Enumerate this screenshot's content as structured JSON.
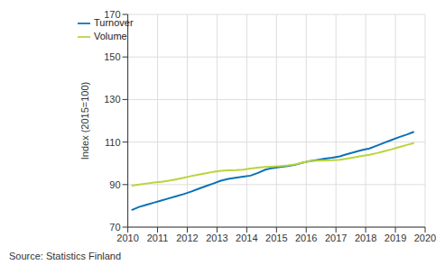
{
  "chart_data": {
    "type": "line",
    "y_label": "Index (2015=100)",
    "source": "Source: Statistics Finland",
    "x": [
      2010.125,
      2010.375,
      2010.625,
      2010.875,
      2011.125,
      2011.375,
      2011.625,
      2011.875,
      2012.125,
      2012.375,
      2012.625,
      2012.875,
      2013.125,
      2013.375,
      2013.625,
      2013.875,
      2014.125,
      2014.375,
      2014.625,
      2014.875,
      2015.125,
      2015.375,
      2015.625,
      2015.875,
      2016.125,
      2016.375,
      2016.625,
      2016.875,
      2017.125,
      2017.375,
      2017.625,
      2017.875,
      2018.125,
      2018.375,
      2018.625,
      2018.875,
      2019.125,
      2019.375,
      2019.625
    ],
    "series": [
      {
        "name": "Turnover",
        "color": "#0a72b5",
        "values": [
          78,
          79.5,
          80.5,
          81.5,
          82.5,
          83.5,
          84.5,
          85.5,
          86.7,
          88,
          89.3,
          90.5,
          91.8,
          92.7,
          93.2,
          93.7,
          94.2,
          95.5,
          97,
          97.8,
          98.3,
          98.7,
          99.3,
          100.3,
          101,
          101.6,
          102.2,
          102.6,
          103.3,
          104.3,
          105.3,
          106.2,
          107,
          108.3,
          109.7,
          111,
          112.3,
          113.5,
          114.8
        ]
      },
      {
        "name": "Volume",
        "color": "#b9d53a",
        "values": [
          89.5,
          90,
          90.5,
          91,
          91.3,
          91.8,
          92.5,
          93.2,
          94,
          94.7,
          95.3,
          96,
          96.5,
          96.7,
          96.8,
          97,
          97.5,
          98,
          98.3,
          98.5,
          98.7,
          99,
          99.5,
          100.3,
          101,
          101.2,
          101.4,
          101.5,
          101.7,
          102.2,
          102.8,
          103.5,
          104,
          104.8,
          105.7,
          106.6,
          107.6,
          108.6,
          109.5
        ]
      }
    ],
    "xlim": [
      2010,
      2020
    ],
    "xticks": [
      2010,
      2011,
      2012,
      2013,
      2014,
      2015,
      2016,
      2017,
      2018,
      2019,
      2020
    ],
    "ylim": [
      70,
      170
    ],
    "yticks": [
      70,
      90,
      110,
      130,
      150,
      170
    ],
    "grid": true,
    "legend": "upper left"
  }
}
